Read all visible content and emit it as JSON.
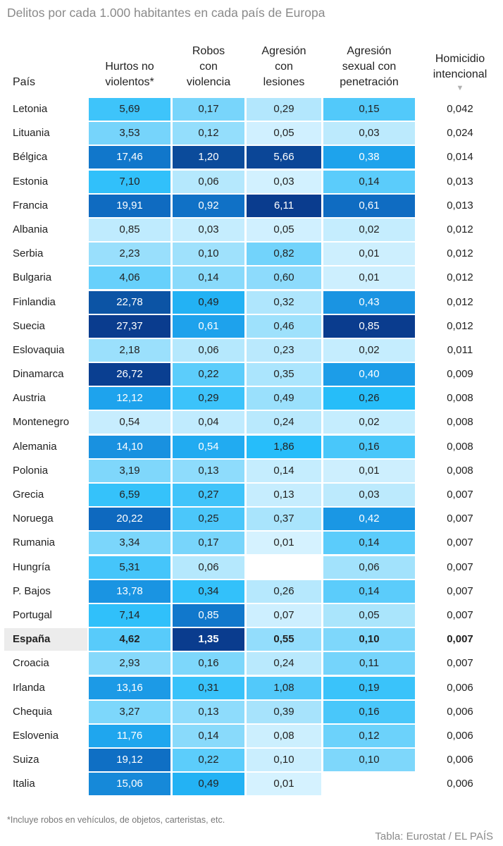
{
  "title": "Delitos por cada 1.000 habitantes en cada país de Europa",
  "footnote": "*Incluye robos en vehículos, de objetos, carteristas, etc.",
  "source": "Tabla: Eurostat / EL PAÍS",
  "sort_arrow": "▼",
  "colors": {
    "text_light": "#ffffff",
    "text_dark": "#222222",
    "highlight_row": "#ececec"
  },
  "chart_data": {
    "type": "table",
    "title": "Delitos por cada 1.000 habitantes en cada país de Europa",
    "columns": [
      {
        "key": "pais",
        "lines": [
          "País"
        ]
      },
      {
        "key": "hurtos",
        "lines": [
          "Hurtos no",
          "violentos*"
        ],
        "max": 27.37
      },
      {
        "key": "robos",
        "lines": [
          "Robos",
          "con",
          "violencia"
        ],
        "max": 1.35
      },
      {
        "key": "agresion",
        "lines": [
          "Agresión",
          "con",
          "lesiones"
        ],
        "max": 6.11
      },
      {
        "key": "sexual",
        "lines": [
          "Agresión",
          "sexual con",
          "penetración"
        ],
        "max": 0.85
      },
      {
        "key": "homicidio",
        "lines": [
          "Homicidio",
          "intencional"
        ]
      }
    ],
    "sort_column": "homicidio",
    "highlight_country": "España",
    "rows": [
      {
        "pais": "Letonia",
        "values": [
          "5,69",
          "0,17",
          "0,29",
          "0,15",
          "0,042"
        ]
      },
      {
        "pais": "Lituania",
        "values": [
          "3,53",
          "0,12",
          "0,05",
          "0,03",
          "0,024"
        ]
      },
      {
        "pais": "Bélgica",
        "values": [
          "17,46",
          "1,20",
          "5,66",
          "0,38",
          "0,014"
        ]
      },
      {
        "pais": "Estonia",
        "values": [
          "7,10",
          "0,06",
          "0,03",
          "0,14",
          "0,013"
        ]
      },
      {
        "pais": "Francia",
        "values": [
          "19,91",
          "0,92",
          "6,11",
          "0,61",
          "0,013"
        ]
      },
      {
        "pais": "Albania",
        "values": [
          "0,85",
          "0,03",
          "0,05",
          "0,02",
          "0,012"
        ]
      },
      {
        "pais": "Serbia",
        "values": [
          "2,23",
          "0,10",
          "0,82",
          "0,01",
          "0,012"
        ]
      },
      {
        "pais": "Bulgaria",
        "values": [
          "4,06",
          "0,14",
          "0,60",
          "0,01",
          "0,012"
        ]
      },
      {
        "pais": "Finlandia",
        "values": [
          "22,78",
          "0,49",
          "0,32",
          "0,43",
          "0,012"
        ]
      },
      {
        "pais": "Suecia",
        "values": [
          "27,37",
          "0,61",
          "0,46",
          "0,85",
          "0,012"
        ]
      },
      {
        "pais": "Eslovaquia",
        "values": [
          "2,18",
          "0,06",
          "0,23",
          "0,02",
          "0,011"
        ]
      },
      {
        "pais": "Dinamarca",
        "values": [
          "26,72",
          "0,22",
          "0,35",
          "0,40",
          "0,009"
        ]
      },
      {
        "pais": "Austria",
        "values": [
          "12,12",
          "0,29",
          "0,49",
          "0,26",
          "0,008"
        ]
      },
      {
        "pais": "Montenegro",
        "values": [
          "0,54",
          "0,04",
          "0,24",
          "0,02",
          "0,008"
        ]
      },
      {
        "pais": "Alemania",
        "values": [
          "14,10",
          "0,54",
          "1,86",
          "0,16",
          "0,008"
        ]
      },
      {
        "pais": "Polonia",
        "values": [
          "3,19",
          "0,13",
          "0,14",
          "0,01",
          "0,008"
        ]
      },
      {
        "pais": "Grecia",
        "values": [
          "6,59",
          "0,27",
          "0,13",
          "0,03",
          "0,007"
        ]
      },
      {
        "pais": "Noruega",
        "values": [
          "20,22",
          "0,25",
          "0,37",
          "0,42",
          "0,007"
        ]
      },
      {
        "pais": "Rumania",
        "values": [
          "3,34",
          "0,17",
          "0,01",
          "0,14",
          "0,007"
        ]
      },
      {
        "pais": "Hungría",
        "values": [
          "5,31",
          "0,06",
          "",
          "0,06",
          "0,007"
        ]
      },
      {
        "pais": "P. Bajos",
        "values": [
          "13,78",
          "0,34",
          "0,26",
          "0,14",
          "0,007"
        ]
      },
      {
        "pais": "Portugal",
        "values": [
          "7,14",
          "0,85",
          "0,07",
          "0,05",
          "0,007"
        ]
      },
      {
        "pais": "España",
        "values": [
          "4,62",
          "1,35",
          "0,55",
          "0,10",
          "0,007"
        ]
      },
      {
        "pais": "Croacia",
        "values": [
          "2,93",
          "0,16",
          "0,24",
          "0,11",
          "0,007"
        ]
      },
      {
        "pais": "Irlanda",
        "values": [
          "13,16",
          "0,31",
          "1,08",
          "0,19",
          "0,006"
        ]
      },
      {
        "pais": "Chequia",
        "values": [
          "3,27",
          "0,13",
          "0,39",
          "0,16",
          "0,006"
        ]
      },
      {
        "pais": "Eslovenia",
        "values": [
          "11,76",
          "0,14",
          "0,08",
          "0,12",
          "0,006"
        ]
      },
      {
        "pais": "Suiza",
        "values": [
          "19,12",
          "0,22",
          "0,10",
          "0,10",
          "0,006"
        ]
      },
      {
        "pais": "Italia",
        "values": [
          "15,06",
          "0,49",
          "0,01",
          "",
          "0,006"
        ]
      }
    ]
  }
}
